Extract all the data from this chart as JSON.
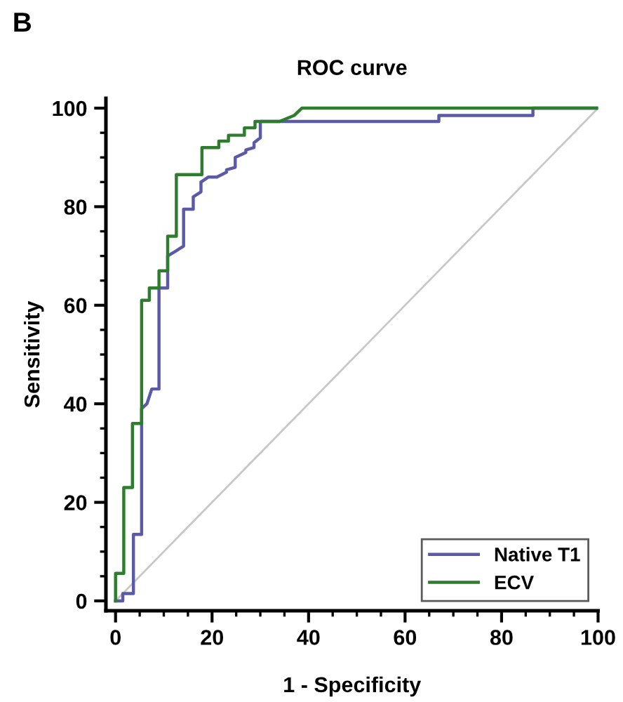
{
  "chart_data": {
    "type": "line",
    "title": "ROC curve",
    "xlabel": "1 - Specificity",
    "ylabel": "Sensitivity",
    "annotations": [
      "B"
    ],
    "xlim": [
      -2,
      100
    ],
    "ylim": [
      -2,
      102
    ],
    "xticks": [
      0,
      20,
      40,
      60,
      80,
      100
    ],
    "yticks": [
      0,
      20,
      40,
      60,
      80,
      100
    ],
    "grid": false,
    "legend": "bottom right",
    "marker": "none",
    "line_style": "solid",
    "series": [
      {
        "name": "Native T1",
        "color": "#5a5aa8",
        "x": [
          0,
          1.5,
          1.5,
          3.7,
          3.7,
          5.4,
          5.4,
          6.5,
          7.5,
          9,
          9,
          10.8,
          10.8,
          12.5,
          14.1,
          14.1,
          16.1,
          16.1,
          17.7,
          17.7,
          19.2,
          21,
          23,
          23,
          24.8,
          24.8,
          27,
          27,
          28.7,
          28.7,
          30,
          30,
          67,
          67,
          86.5,
          86.5,
          100
        ],
        "values": [
          0,
          0,
          1.5,
          1.5,
          13.5,
          13.5,
          39,
          40,
          43,
          43,
          63.5,
          63.5,
          70,
          71,
          72,
          79.5,
          79.5,
          82,
          83,
          85,
          86,
          86,
          87,
          87.5,
          88,
          90,
          91,
          91.5,
          92,
          93,
          94,
          97.3,
          97.3,
          98.5,
          98.5,
          100,
          100
        ]
      },
      {
        "name": "ECV",
        "color": "#2e7d2e",
        "x": [
          0,
          0,
          1.7,
          1.7,
          3.5,
          3.5,
          5.4,
          5.4,
          7,
          7,
          9,
          9,
          10.8,
          10.8,
          12.6,
          12.6,
          17.9,
          17.9,
          21.4,
          21.4,
          23.4,
          23.4,
          26.7,
          26.7,
          28.9,
          28.9,
          34,
          37,
          38.6,
          100
        ],
        "values": [
          0,
          5.6,
          5.6,
          23,
          23,
          36,
          36,
          61,
          61,
          63.5,
          63.5,
          67,
          67,
          74,
          74,
          86.5,
          86.5,
          92,
          92,
          93.3,
          93.3,
          94.5,
          94.5,
          96,
          96,
          97.3,
          97.3,
          98.5,
          100,
          100
        ]
      },
      {
        "color": "#c8c8c8",
        "x": [
          0,
          100
        ],
        "values": [
          0,
          100
        ]
      }
    ]
  }
}
